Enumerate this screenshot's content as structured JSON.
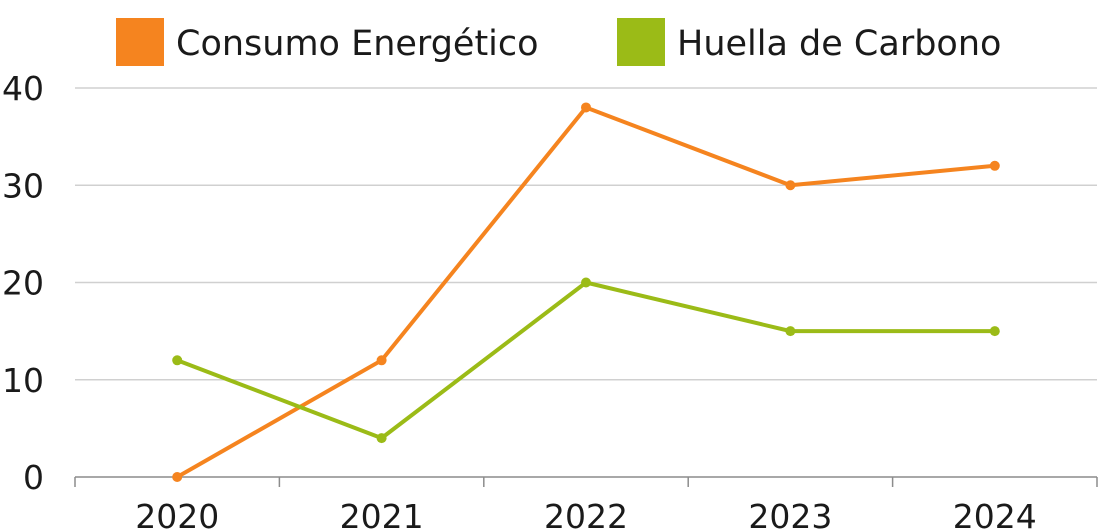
{
  "chart_data": {
    "type": "line",
    "categories": [
      "2020",
      "2021",
      "2022",
      "2023",
      "2024"
    ],
    "series": [
      {
        "name": "Consumo Energético",
        "color": "#F5841F",
        "values": [
          0,
          12,
          38,
          30,
          32
        ]
      },
      {
        "name": "Huella de Carbono",
        "color": "#9BBB17",
        "values": [
          12,
          4,
          20,
          15,
          15
        ]
      }
    ],
    "y_ticks": [
      "0",
      "10",
      "20",
      "30",
      "40"
    ],
    "ylim": [
      0,
      40
    ],
    "grid": true,
    "legend_position": "top"
  }
}
